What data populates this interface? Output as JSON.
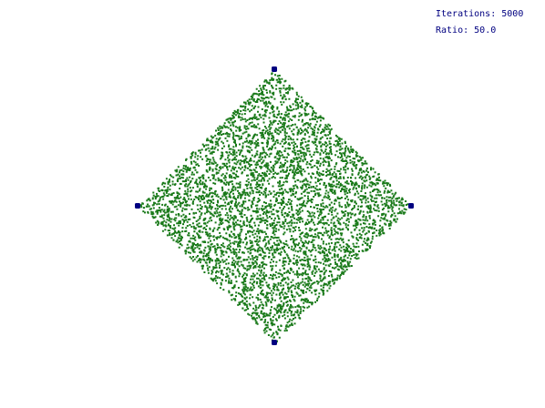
{
  "stats": {
    "iterations_label": "Iterations:",
    "iterations_value": "5000",
    "ratio_label": "Ratio:",
    "ratio_value": "50.0"
  },
  "simulation": {
    "iterations": 5000,
    "ratio": 50.0,
    "vertex_count": 4
  },
  "colors": {
    "background": "#ffffff",
    "points": "#1a7a1a",
    "vertices": "#000080",
    "text": "#000080"
  }
}
